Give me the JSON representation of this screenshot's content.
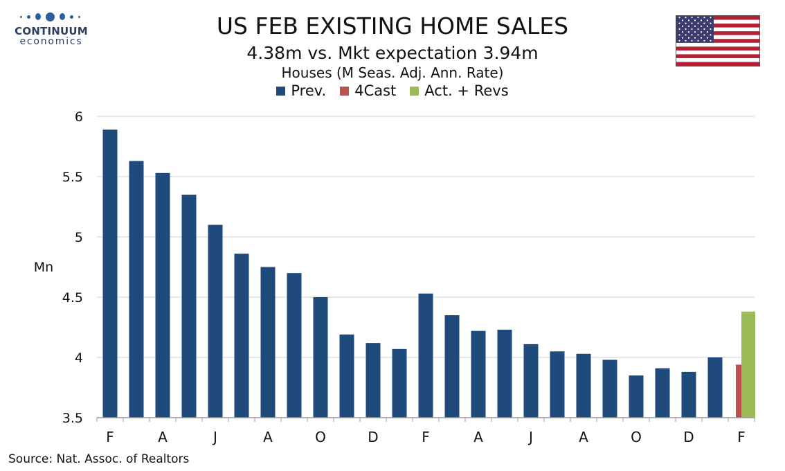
{
  "logo": {
    "word1": "CONTINUUM",
    "word2": "economics"
  },
  "title": "US FEB EXISTING HOME SALES",
  "subtitle": "4.38m vs. Mkt expectation 3.94m",
  "unit_line": "Houses (M Seas. Adj. Ann. Rate)",
  "source": "Source: Nat. Assoc. of Realtors",
  "flag_icon": "us-flag-icon",
  "colors": {
    "prev": "#1f4a7c",
    "forecast": "#c0504d",
    "actual": "#9bbb59",
    "grid": "#d0d0d0"
  },
  "chart_data": {
    "type": "bar",
    "title": "US FEB EXISTING HOME SALES",
    "ylabel": "Mn",
    "ylim": [
      3.5,
      6
    ],
    "yticks": [
      6,
      5.5,
      5,
      4.5,
      4,
      3.5
    ],
    "ytick_labels": [
      "6",
      "5.5",
      "5",
      "4.5",
      "4",
      "3.5"
    ],
    "grid": true,
    "legend_position": "top-center",
    "xtick_labels": [
      "F",
      "A",
      "J",
      "A",
      "O",
      "D",
      "F",
      "A",
      "J",
      "A",
      "O",
      "D",
      "F"
    ],
    "series": [
      {
        "name": "Prev.",
        "color": "#1f4a7c",
        "values": [
          5.89,
          5.63,
          5.53,
          5.35,
          5.1,
          4.86,
          4.75,
          4.7,
          4.5,
          4.19,
          4.12,
          4.07,
          4.53,
          4.35,
          4.22,
          4.23,
          4.11,
          4.05,
          4.03,
          3.98,
          3.85,
          3.91,
          3.88,
          4.0
        ]
      },
      {
        "name": "4Cast",
        "color": "#c0504d",
        "values": [
          3.94
        ]
      },
      {
        "name": "Act. + Revs",
        "color": "#9bbb59",
        "values": [
          4.38
        ]
      }
    ]
  }
}
